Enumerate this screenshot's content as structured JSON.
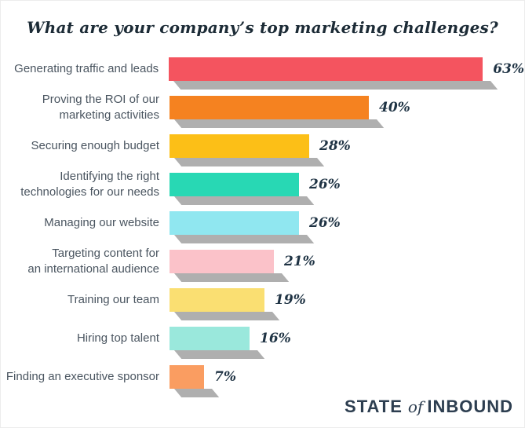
{
  "title": "What are your company’s top marketing challenges?",
  "chart_data": {
    "type": "bar",
    "orientation": "horizontal",
    "title": "What are your company’s top marketing challenges?",
    "categories": [
      "Generating traffic and leads",
      "Proving the ROI of our\nmarketing activities",
      "Securing enough budget",
      "Identifying the right\ntechnologies for our needs",
      "Managing our website",
      "Targeting content for\nan international audience",
      "Training our team",
      "Hiring top talent",
      "Finding an executive sponsor"
    ],
    "values": [
      63,
      40,
      28,
      26,
      26,
      21,
      19,
      16,
      7
    ],
    "value_labels": [
      "63%",
      "40%",
      "28%",
      "26%",
      "26%",
      "21%",
      "19%",
      "16%",
      "7%"
    ],
    "bar_colors": [
      "#f4545f",
      "#f58220",
      "#fcbf17",
      "#28d8b4",
      "#90e7f0",
      "#fbc2c9",
      "#fadf72",
      "#9ae8dc",
      "#fa9d61"
    ],
    "unit": "%",
    "xlim": [
      0,
      66
    ],
    "grid": false,
    "legend_position": "none",
    "bar_shadow": true
  },
  "footer": {
    "logo": {
      "state": "STATE",
      "of": "of",
      "inbound": "INBOUND"
    }
  },
  "style_colors": {
    "title_text": "#1c2b36",
    "label_text": "#4a5560",
    "value_text": "#1f3344",
    "shadow": "#9b9b9b",
    "logo_text": "#2d3e50",
    "background": "#ffffff"
  }
}
